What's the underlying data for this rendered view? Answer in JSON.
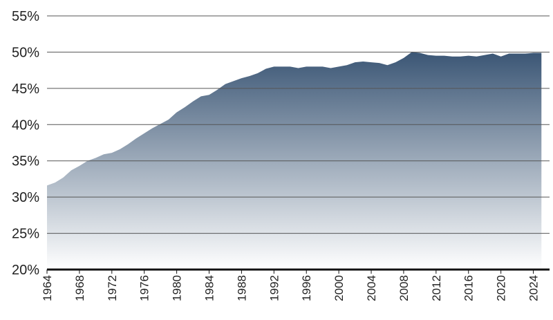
{
  "chart_data": {
    "type": "area",
    "x": [
      1964,
      1965,
      1966,
      1967,
      1968,
      1969,
      1970,
      1971,
      1972,
      1973,
      1974,
      1975,
      1976,
      1977,
      1978,
      1979,
      1980,
      1981,
      1982,
      1983,
      1984,
      1985,
      1986,
      1987,
      1988,
      1989,
      1990,
      1991,
      1992,
      1993,
      1994,
      1995,
      1996,
      1997,
      1998,
      1999,
      2000,
      2001,
      2002,
      2003,
      2004,
      2005,
      2006,
      2007,
      2008,
      2009,
      2010,
      2011,
      2012,
      2013,
      2014,
      2015,
      2016,
      2017,
      2018,
      2019,
      2020,
      2021,
      2022,
      2023,
      2024,
      2025
    ],
    "values": [
      31.6,
      32.0,
      32.7,
      33.7,
      34.3,
      35.0,
      35.4,
      35.9,
      36.1,
      36.6,
      37.3,
      38.1,
      38.8,
      39.5,
      40.1,
      40.7,
      41.7,
      42.4,
      43.2,
      43.9,
      44.1,
      44.8,
      45.6,
      46.0,
      46.4,
      46.7,
      47.1,
      47.7,
      48.0,
      48.0,
      48.0,
      47.8,
      48.0,
      48.0,
      48.0,
      47.8,
      48.0,
      48.2,
      48.6,
      48.7,
      48.6,
      48.5,
      48.2,
      48.6,
      49.2,
      50.0,
      49.9,
      49.6,
      49.5,
      49.5,
      49.4,
      49.4,
      49.5,
      49.4,
      49.6,
      49.8,
      49.4,
      49.8,
      49.8,
      49.8,
      49.9,
      49.9
    ],
    "color": "#3b5675",
    "xlim": [
      1964,
      2026
    ],
    "xticks": [
      1964,
      1968,
      1972,
      1976,
      1980,
      1984,
      1988,
      1992,
      1996,
      2000,
      2004,
      2008,
      2012,
      2016,
      2020,
      2024
    ],
    "ylim": [
      20,
      55
    ],
    "yticks": [
      {
        "value": 20,
        "label": "20%"
      },
      {
        "value": 25,
        "label": "25%"
      },
      {
        "value": 30,
        "label": "30%"
      },
      {
        "value": 35,
        "label": "35%"
      },
      {
        "value": 40,
        "label": "40%"
      },
      {
        "value": 45,
        "label": "45%"
      },
      {
        "value": 50,
        "label": "50%"
      },
      {
        "value": 55,
        "label": "55%"
      }
    ],
    "grid": true
  }
}
